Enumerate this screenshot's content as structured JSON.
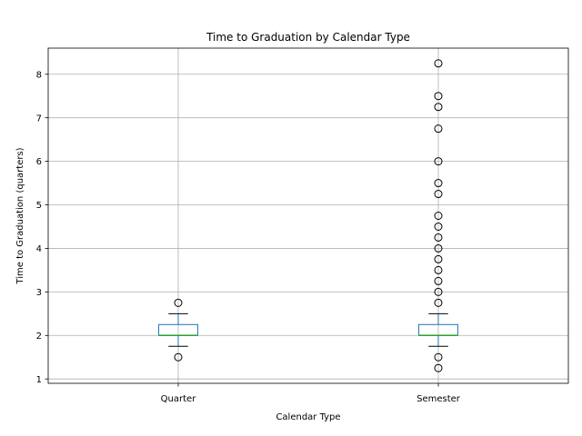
{
  "chart_data": {
    "type": "box",
    "title": "Time to Graduation by Calendar Type",
    "xlabel": "Calendar Type",
    "ylabel": "Time to Graduation (quarters)",
    "ylim": [
      0.9,
      8.6
    ],
    "yticks": [
      1,
      2,
      3,
      4,
      5,
      6,
      7,
      8
    ],
    "grid": true,
    "categories": [
      "Quarter",
      "Semester"
    ],
    "boxes": [
      {
        "category": "Quarter",
        "whisker_low": 1.75,
        "q1": 2.0,
        "median": 2.0,
        "q3": 2.25,
        "whisker_high": 2.5,
        "outliers": [
          1.5,
          2.75
        ]
      },
      {
        "category": "Semester",
        "whisker_low": 1.75,
        "q1": 2.0,
        "median": 2.0,
        "q3": 2.25,
        "whisker_high": 2.5,
        "outliers": [
          1.25,
          1.5,
          2.75,
          3.0,
          3.25,
          3.5,
          3.75,
          4.0,
          4.25,
          4.5,
          4.75,
          5.25,
          5.5,
          6.0,
          6.75,
          7.25,
          7.5,
          8.25
        ]
      }
    ],
    "colors": {
      "box": "#1f77b4",
      "median": "#2ca02c",
      "whisker": "#000000",
      "grid": "#b0b0b0",
      "axis": "#000000"
    }
  }
}
